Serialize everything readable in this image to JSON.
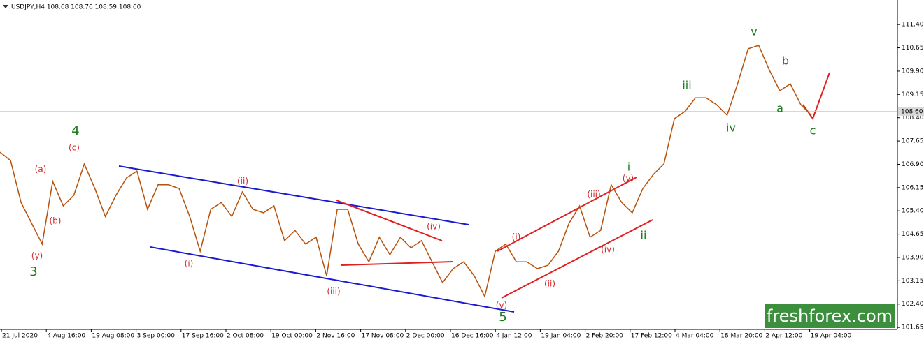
{
  "chart_data": {
    "type": "line",
    "title": "USDJPY,H4  108.68 108.76 108.59 108.60",
    "x_labels": [
      "21 Jul 2020",
      "4 Aug 16:00",
      "19 Aug 08:00",
      "3 Sep 00:00",
      "17 Sep 16:00",
      "2 Oct 08:00",
      "19 Oct 00:00",
      "2 Nov 16:00",
      "17 Nov 08:00",
      "2 Dec 00:00",
      "16 Dec 16:00",
      "4 Jan 12:00",
      "19 Jan 04:00",
      "2 Feb 20:00",
      "17 Feb 12:00",
      "4 Mar 04:00",
      "18 Mar 20:00",
      "2 Apr 12:00",
      "19 Apr 04:00"
    ],
    "series": [
      {
        "name": "USDJPY",
        "color": "#b5520c",
        "values": [
          107.29,
          107.02,
          105.67,
          105.0,
          104.33,
          106.35,
          105.56,
          105.9,
          106.91,
          106.12,
          105.22,
          105.9,
          106.46,
          106.68,
          105.45,
          106.24,
          106.24,
          106.12,
          105.22,
          104.1,
          105.45,
          105.67,
          105.22,
          106.01,
          105.45,
          105.34,
          105.56,
          104.44,
          104.77,
          104.33,
          104.55,
          103.31,
          105.45,
          105.45,
          104.33,
          103.76,
          104.55,
          103.99,
          104.55,
          104.21,
          104.44,
          103.76,
          103.09,
          103.54,
          103.76,
          103.31,
          102.64,
          104.1,
          104.33,
          103.76,
          103.76,
          103.54,
          103.65,
          104.1,
          105.0,
          105.56,
          104.55,
          104.77,
          106.24,
          105.67,
          105.34,
          106.12,
          106.57,
          106.91,
          108.37,
          108.6,
          109.04,
          109.04,
          108.82,
          108.48,
          109.49,
          110.62,
          110.73,
          109.94,
          109.27,
          109.49,
          108.82,
          108.48
        ]
      }
    ],
    "ylim": [
      101.63,
      112.19
    ],
    "yticks": [
      {
        "value": 111.4,
        "label": "111.40"
      },
      {
        "value": 110.65,
        "label": "110.65"
      },
      {
        "value": 109.9,
        "label": "109.90"
      },
      {
        "value": 109.15,
        "label": "109.15"
      },
      {
        "value": 108.4,
        "label": "108.40"
      },
      {
        "value": 107.65,
        "label": "107.65"
      },
      {
        "value": 106.9,
        "label": "106.90"
      },
      {
        "value": 106.15,
        "label": "106.15"
      },
      {
        "value": 105.4,
        "label": "105.40"
      },
      {
        "value": 104.65,
        "label": "104.65"
      },
      {
        "value": 103.9,
        "label": "103.90"
      },
      {
        "value": 103.15,
        "label": "103.15"
      },
      {
        "value": 102.4,
        "label": "102.40"
      },
      {
        "value": 101.65,
        "label": "101.65"
      }
    ],
    "current_price": {
      "value": 108.6,
      "label": "108.60"
    },
    "annotations": [
      "3",
      "4",
      "(a)",
      "(b)",
      "(c)",
      "(y)",
      "(i)",
      "(ii)",
      "(iii)",
      "(iv)",
      "(v)",
      "5",
      "(i)",
      "(ii)",
      "(iii)",
      "(iv)",
      "(v)",
      "i",
      "ii",
      "iii",
      "iv",
      "v",
      "a",
      "b",
      "c"
    ],
    "watermark": "freshforex.com"
  }
}
